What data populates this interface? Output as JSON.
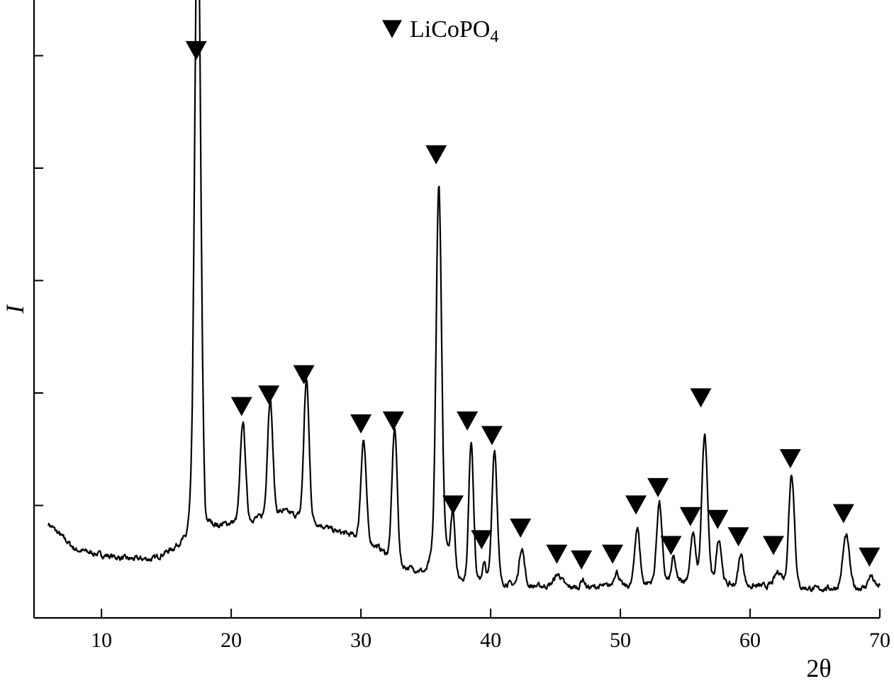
{
  "chart_data": {
    "type": "line",
    "xlabel": "2θ",
    "ylabel": "I",
    "xlim": [
      4.8,
      70
    ],
    "ylim": [
      0,
      100
    ],
    "x_ticks": [
      10,
      20,
      30,
      40,
      50,
      60,
      70
    ],
    "x_tick_labels": [
      "10",
      "20",
      "30",
      "40",
      "50",
      "60",
      "70"
    ],
    "y_tick_count": 5,
    "y_tick_labels_visible": false,
    "grid": false,
    "legend": {
      "position": "top-center",
      "marker": "filled-down-triangle",
      "label_main": "LiCoPO",
      "label_subscript": "4"
    },
    "baseline": [
      [
        5.9,
        16.3
      ],
      [
        8,
        11.8
      ],
      [
        10,
        10.9
      ],
      [
        12,
        10.2
      ],
      [
        14,
        10.2
      ],
      [
        15.5,
        12.0
      ],
      [
        16.5,
        14.0
      ],
      [
        17,
        20
      ],
      [
        17.5,
        42
      ],
      [
        18,
        17
      ],
      [
        19,
        16
      ],
      [
        20,
        16.5
      ],
      [
        21.5,
        17
      ],
      [
        24,
        18.5
      ],
      [
        26,
        17
      ],
      [
        28,
        15
      ],
      [
        30,
        14
      ],
      [
        31.5,
        12
      ],
      [
        33,
        9
      ],
      [
        35,
        8
      ],
      [
        36.2,
        16
      ],
      [
        37.5,
        7
      ],
      [
        39,
        6.5
      ],
      [
        41,
        6
      ],
      [
        43,
        5.5
      ],
      [
        45,
        5.5
      ],
      [
        47,
        5.2
      ],
      [
        49,
        5.5
      ],
      [
        51,
        5.5
      ],
      [
        53,
        6.5
      ],
      [
        55,
        6.5
      ],
      [
        57,
        6.5
      ],
      [
        59,
        5.5
      ],
      [
        61,
        5.5
      ],
      [
        63,
        5.5
      ],
      [
        65,
        5
      ],
      [
        67,
        5.2
      ],
      [
        69,
        5.2
      ],
      [
        70,
        5.5
      ]
    ],
    "noise_amplitude": 0.9,
    "peaks": [
      {
        "x": 17.4,
        "height": 88,
        "width": 0.22
      },
      {
        "x": 20.9,
        "height": 17,
        "width": 0.2
      },
      {
        "x": 23.0,
        "height": 20,
        "width": 0.2
      },
      {
        "x": 25.8,
        "height": 24,
        "width": 0.2
      },
      {
        "x": 30.2,
        "height": 17,
        "width": 0.2
      },
      {
        "x": 32.6,
        "height": 23,
        "width": 0.2
      },
      {
        "x": 36.0,
        "height": 60,
        "width": 0.2
      },
      {
        "x": 37.1,
        "height": 9,
        "width": 0.15
      },
      {
        "x": 38.5,
        "height": 24,
        "width": 0.18
      },
      {
        "x": 39.5,
        "height": 3,
        "width": 0.15
      },
      {
        "x": 40.3,
        "height": 23,
        "width": 0.2
      },
      {
        "x": 42.4,
        "height": 6.5,
        "width": 0.2
      },
      {
        "x": 45.2,
        "height": 2,
        "width": 0.3
      },
      {
        "x": 47.1,
        "height": 1.5,
        "width": 0.15
      },
      {
        "x": 49.7,
        "height": 2.5,
        "width": 0.2
      },
      {
        "x": 51.3,
        "height": 10,
        "width": 0.2
      },
      {
        "x": 53.0,
        "height": 13.5,
        "width": 0.2
      },
      {
        "x": 54.1,
        "height": 4,
        "width": 0.15
      },
      {
        "x": 55.6,
        "height": 8,
        "width": 0.2
      },
      {
        "x": 56.5,
        "height": 25,
        "width": 0.22
      },
      {
        "x": 57.6,
        "height": 7.5,
        "width": 0.2
      },
      {
        "x": 59.3,
        "height": 5.5,
        "width": 0.2
      },
      {
        "x": 62.2,
        "height": 2.5,
        "width": 0.3
      },
      {
        "x": 63.2,
        "height": 19.5,
        "width": 0.22
      },
      {
        "x": 67.4,
        "height": 9,
        "width": 0.25
      },
      {
        "x": 69.3,
        "height": 2,
        "width": 0.2
      }
    ],
    "markers": [
      {
        "x": 17.3,
        "y": 98
      },
      {
        "x": 20.8,
        "y": 36.5
      },
      {
        "x": 22.9,
        "y": 38.5
      },
      {
        "x": 25.6,
        "y": 42
      },
      {
        "x": 30.0,
        "y": 33.5
      },
      {
        "x": 32.5,
        "y": 34
      },
      {
        "x": 35.8,
        "y": 80
      },
      {
        "x": 37.1,
        "y": 19.5
      },
      {
        "x": 38.2,
        "y": 34
      },
      {
        "x": 40.1,
        "y": 31.5
      },
      {
        "x": 39.3,
        "y": 13.5
      },
      {
        "x": 42.3,
        "y": 15.5
      },
      {
        "x": 45.1,
        "y": 11
      },
      {
        "x": 47.0,
        "y": 10
      },
      {
        "x": 49.4,
        "y": 11
      },
      {
        "x": 51.2,
        "y": 19.5
      },
      {
        "x": 52.9,
        "y": 22.5
      },
      {
        "x": 53.9,
        "y": 12.5
      },
      {
        "x": 55.4,
        "y": 17.5
      },
      {
        "x": 56.2,
        "y": 38
      },
      {
        "x": 57.5,
        "y": 17
      },
      {
        "x": 59.1,
        "y": 14
      },
      {
        "x": 61.8,
        "y": 12.5
      },
      {
        "x": 63.1,
        "y": 27.5
      },
      {
        "x": 67.2,
        "y": 18
      },
      {
        "x": 69.2,
        "y": 10.5
      }
    ]
  }
}
